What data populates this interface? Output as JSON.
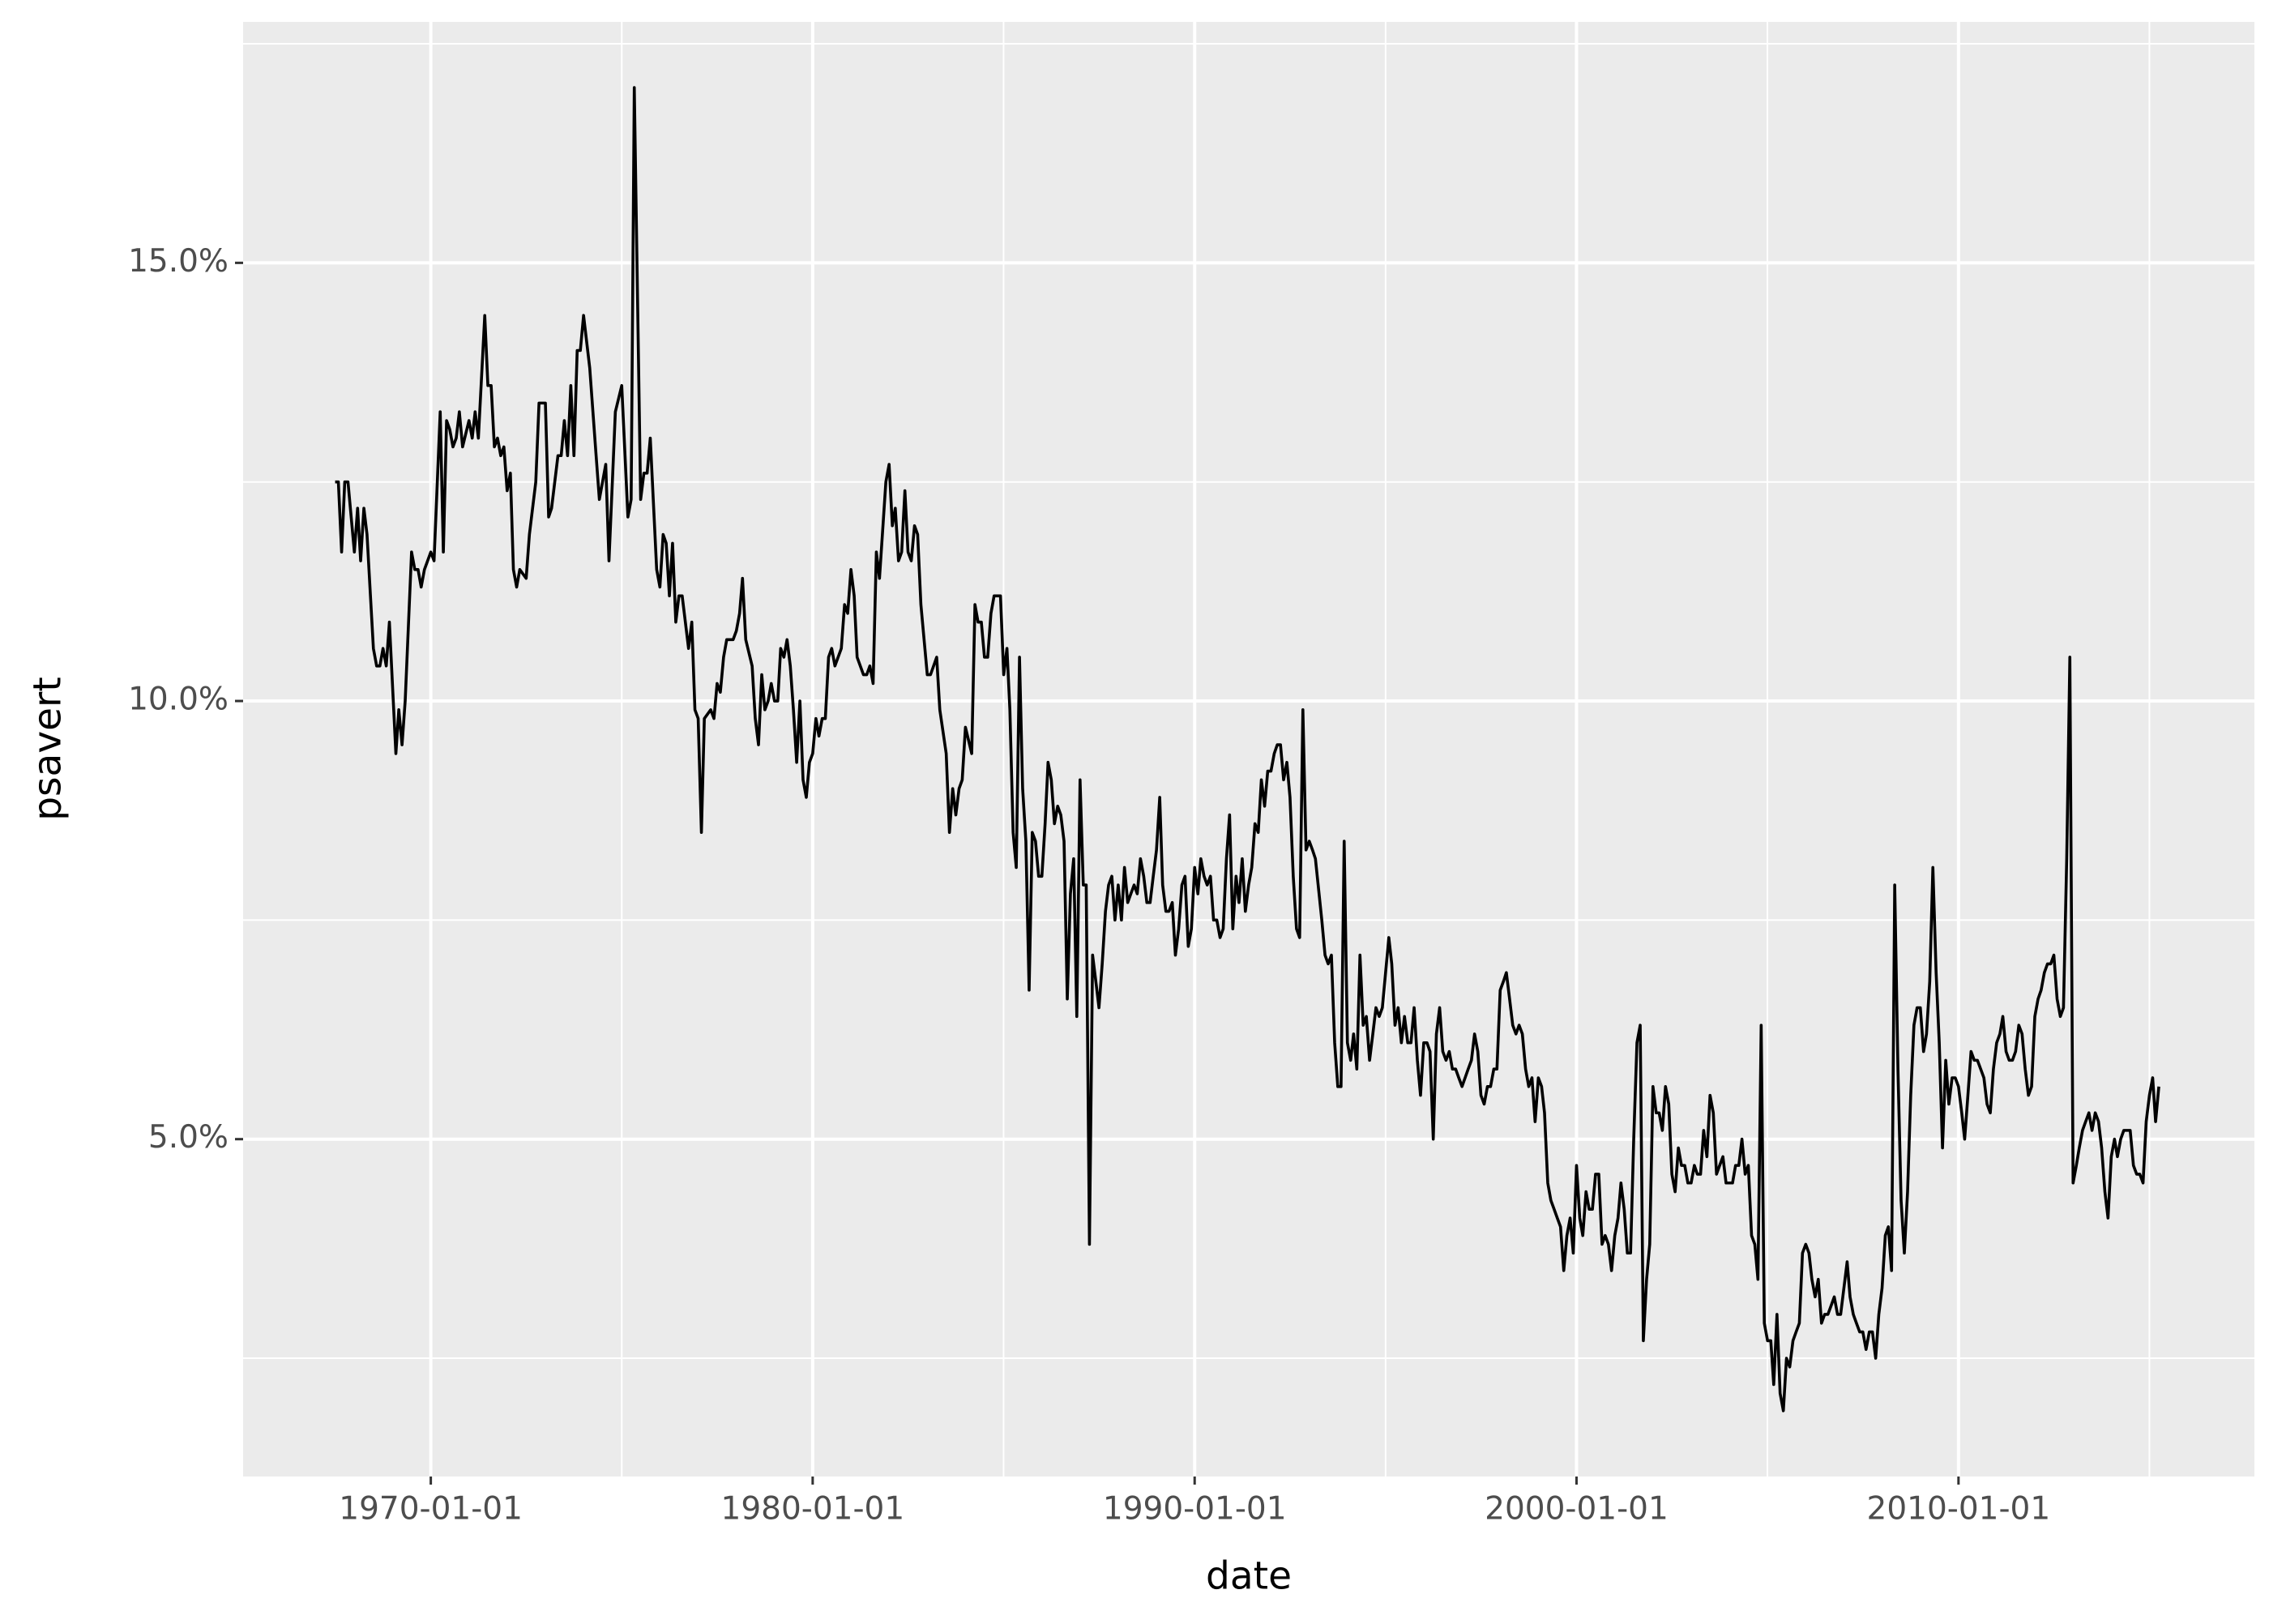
{
  "chart_data": {
    "type": "line",
    "xlabel": "date",
    "ylabel": "psavert",
    "color": "#000000",
    "grid": true,
    "xlim": [
      "1965-02-01",
      "2017-10-01"
    ],
    "xticks": [
      "1970-01-01",
      "1980-01-01",
      "1990-01-01",
      "2000-01-01",
      "2010-01-01"
    ],
    "ylim": [
      1.15,
      17.75
    ],
    "yticks": [
      {
        "value": 5,
        "label": "5.0%"
      },
      {
        "value": 10,
        "label": "10.0%"
      },
      {
        "value": 15,
        "label": "15.0%"
      }
    ],
    "x": [
      "1967-07-01",
      "1967-08-01",
      "1967-09-01",
      "1967-10-01",
      "1967-11-01",
      "1968-01-01",
      "1968-02-01",
      "1968-03-01",
      "1968-04-01",
      "1968-05-01",
      "1968-07-01",
      "1968-08-01",
      "1968-09-01",
      "1968-10-01",
      "1968-11-01",
      "1968-12-01",
      "1969-02-01",
      "1969-03-01",
      "1969-04-01",
      "1969-05-01",
      "1969-07-01",
      "1969-08-01",
      "1969-09-01",
      "1969-10-01",
      "1969-11-01",
      "1970-01-01",
      "1970-02-01",
      "1970-04-01",
      "1970-05-01",
      "1970-06-01",
      "1970-07-01",
      "1970-08-01",
      "1970-09-01",
      "1970-10-01",
      "1970-11-01",
      "1971-01-01",
      "1971-02-01",
      "1971-03-01",
      "1971-04-01",
      "1971-06-01",
      "1971-07-01",
      "1971-08-01",
      "1971-09-01",
      "1971-10-01",
      "1971-11-01",
      "1971-12-01",
      "1972-01-01",
      "1972-02-01",
      "1972-03-01",
      "1972-04-01",
      "1972-05-01",
      "1972-07-01",
      "1972-08-01",
      "1972-10-01",
      "1972-11-01",
      "1973-01-01",
      "1973-02-01",
      "1973-03-01",
      "1973-05-01",
      "1973-06-01",
      "1973-07-01",
      "1973-08-01",
      "1973-09-01",
      "1973-10-01",
      "1973-11-01",
      "1973-12-01",
      "1974-01-01",
      "1974-03-01",
      "1974-05-01",
      "1974-06-01",
      "1974-08-01",
      "1974-09-01",
      "1974-11-01",
      "1975-01-01",
      "1975-03-01",
      "1975-04-01",
      "1975-05-01",
      "1975-07-01",
      "1975-08-01",
      "1975-09-01",
      "1975-10-01",
      "1975-12-01",
      "1976-01-01",
      "1976-02-01",
      "1976-03-01",
      "1976-04-01",
      "1976-05-01",
      "1976-06-01",
      "1976-07-01",
      "1976-08-01",
      "1976-10-01",
      "1976-11-01",
      "1976-12-01",
      "1977-01-01",
      "1977-02-01",
      "1977-03-01",
      "1977-05-01",
      "1977-06-01",
      "1977-07-01",
      "1977-08-01",
      "1977-09-01",
      "1977-10-01",
      "1977-12-01",
      "1978-01-01",
      "1978-02-01",
      "1978-03-01",
      "1978-04-01",
      "1978-06-01",
      "1978-07-01",
      "1978-08-01",
      "1978-09-01",
      "1978-10-01",
      "1978-11-01",
      "1978-12-01",
      "1979-01-01",
      "1979-02-01",
      "1979-03-01",
      "1979-04-01",
      "1979-05-01",
      "1979-06-01",
      "1979-07-01",
      "1979-08-01",
      "1979-09-01",
      "1979-10-01",
      "1979-11-01",
      "1979-12-01",
      "1980-01-01",
      "1980-02-01",
      "1980-03-01",
      "1980-04-01",
      "1980-05-01",
      "1980-06-01",
      "1980-07-01",
      "1980-08-01",
      "1980-10-01",
      "1980-11-01",
      "1980-12-01",
      "1981-01-01",
      "1981-02-01",
      "1981-03-01",
      "1981-05-01",
      "1981-06-01",
      "1981-07-01",
      "1981-08-01",
      "1981-09-01",
      "1981-10-01",
      "1981-12-01",
      "1982-01-01",
      "1982-02-01",
      "1982-03-01",
      "1982-04-01",
      "1982-05-01",
      "1982-06-01",
      "1982-07-01",
      "1982-08-01",
      "1982-09-01",
      "1982-10-01",
      "1982-11-01",
      "1983-01-01",
      "1983-02-01",
      "1983-04-01",
      "1983-05-01",
      "1983-07-01",
      "1983-08-01",
      "1983-09-01",
      "1983-10-01",
      "1983-11-01",
      "1983-12-01",
      "1984-01-01",
      "1984-03-01",
      "1984-04-01",
      "1984-05-01",
      "1984-06-01",
      "1984-07-01",
      "1984-08-01",
      "1984-09-01",
      "1984-10-01",
      "1984-12-01",
      "1985-01-01",
      "1985-02-01",
      "1985-03-01",
      "1985-04-01",
      "1985-05-01",
      "1985-06-01",
      "1985-07-01",
      "1985-08-01",
      "1985-09-01",
      "1985-10-01",
      "1985-11-01",
      "1985-12-01",
      "1986-01-01",
      "1986-02-01",
      "1986-03-01",
      "1986-04-01",
      "1986-05-01",
      "1986-06-01",
      "1986-07-01",
      "1986-08-01",
      "1986-09-01",
      "1986-10-01",
      "1986-11-01",
      "1986-12-01",
      "1987-01-01",
      "1987-02-01",
      "1987-03-01",
      "1987-04-01",
      "1987-05-01",
      "1987-06-01",
      "1987-07-01",
      "1987-08-01",
      "1987-09-01",
      "1987-10-01",
      "1987-11-01",
      "1987-12-01",
      "1988-01-01",
      "1988-02-01",
      "1988-03-01",
      "1988-04-01",
      "1988-05-01",
      "1988-06-01",
      "1988-07-01",
      "1988-08-01",
      "1988-09-01",
      "1988-10-01",
      "1988-11-01",
      "1988-12-01",
      "1989-01-01",
      "1989-02-01",
      "1989-03-01",
      "1989-04-01",
      "1989-05-01",
      "1989-06-01",
      "1989-07-01",
      "1989-08-01",
      "1989-09-01",
      "1989-10-01",
      "1989-11-01",
      "1989-12-01",
      "1990-01-01",
      "1990-02-01",
      "1990-03-01",
      "1990-04-01",
      "1990-05-01",
      "1990-06-01",
      "1990-07-01",
      "1990-08-01",
      "1990-09-01",
      "1990-10-01",
      "1990-11-01",
      "1990-12-01",
      "1991-01-01",
      "1991-02-01",
      "1991-03-01",
      "1991-04-01",
      "1991-05-01",
      "1991-06-01",
      "1991-07-01",
      "1991-08-01",
      "1991-09-01",
      "1991-10-01",
      "1991-11-01",
      "1991-12-01",
      "1992-01-01",
      "1992-02-01",
      "1992-03-01",
      "1992-04-01",
      "1992-05-01",
      "1992-06-01",
      "1992-07-01",
      "1992-08-01",
      "1992-09-01",
      "1992-10-01",
      "1992-11-01",
      "1992-12-01",
      "1993-01-01",
      "1993-02-01",
      "1993-03-01",
      "1993-05-01",
      "1993-06-01",
      "1993-07-01",
      "1993-08-01",
      "1993-09-01",
      "1993-10-01",
      "1993-11-01",
      "1993-12-01",
      "1994-01-01",
      "1994-02-01",
      "1994-03-01",
      "1994-04-01",
      "1994-05-01",
      "1994-06-01",
      "1994-07-01",
      "1994-08-01",
      "1994-09-01",
      "1994-10-01",
      "1994-11-01",
      "1994-12-01",
      "1995-01-01",
      "1995-02-01",
      "1995-03-01",
      "1995-04-01",
      "1995-05-01",
      "1995-06-01",
      "1995-07-01",
      "1995-08-01",
      "1995-09-01",
      "1995-10-01",
      "1995-11-01",
      "1995-12-01",
      "1996-01-01",
      "1996-02-01",
      "1996-03-01",
      "1996-04-01",
      "1996-05-01",
      "1996-06-01",
      "1996-07-01",
      "1996-08-01",
      "1996-09-01",
      "1996-10-01",
      "1996-11-01",
      "1996-12-01",
      "1997-01-01",
      "1997-03-01",
      "1997-04-01",
      "1997-05-01",
      "1997-06-01",
      "1997-07-01",
      "1997-08-01",
      "1997-09-01",
      "1997-10-01",
      "1997-11-01",
      "1997-12-01",
      "1998-01-01",
      "1998-02-01",
      "1998-03-01",
      "1998-04-01",
      "1998-05-01",
      "1998-06-01",
      "1998-07-01",
      "1998-08-01",
      "1998-09-01",
      "1998-10-01",
      "1998-11-01",
      "1998-12-01",
      "1999-01-01",
      "1999-02-01",
      "1999-03-01",
      "1999-04-01",
      "1999-05-01",
      "1999-06-01",
      "1999-07-01",
      "1999-08-01",
      "1999-09-01",
      "1999-10-01",
      "1999-11-01",
      "1999-12-01",
      "2000-01-01",
      "2000-02-01",
      "2000-03-01",
      "2000-04-01",
      "2000-05-01",
      "2000-06-01",
      "2000-07-01",
      "2000-08-01",
      "2000-09-01",
      "2000-10-01",
      "2000-11-01",
      "2000-12-01",
      "2001-01-01",
      "2001-02-01",
      "2001-03-01",
      "2001-04-01",
      "2001-05-01",
      "2001-06-01",
      "2001-07-01",
      "2001-08-01",
      "2001-09-01",
      "2001-10-01",
      "2001-11-01",
      "2001-12-01",
      "2002-01-01",
      "2002-02-01",
      "2002-03-01",
      "2002-04-01",
      "2002-05-01",
      "2002-06-01",
      "2002-07-01",
      "2002-08-01",
      "2002-09-01",
      "2002-10-01",
      "2002-11-01",
      "2002-12-01",
      "2003-01-01",
      "2003-02-01",
      "2003-03-01",
      "2003-04-01",
      "2003-05-01",
      "2003-06-01",
      "2003-07-01",
      "2003-08-01",
      "2003-09-01",
      "2003-10-01",
      "2003-11-01",
      "2003-12-01",
      "2004-01-01",
      "2004-02-01",
      "2004-03-01",
      "2004-04-01",
      "2004-05-01",
      "2004-06-01",
      "2004-07-01",
      "2004-08-01",
      "2004-09-01",
      "2004-10-01",
      "2004-11-01",
      "2004-12-01",
      "2005-01-01",
      "2005-02-01",
      "2005-03-01",
      "2005-04-01",
      "2005-05-01",
      "2005-06-01",
      "2005-07-01",
      "2005-08-01",
      "2005-09-01",
      "2005-10-01",
      "2005-11-01",
      "2005-12-01",
      "2006-01-01",
      "2006-02-01",
      "2006-03-01",
      "2006-04-01",
      "2006-05-01",
      "2006-06-01",
      "2006-07-01",
      "2006-08-01",
      "2006-09-01",
      "2006-10-01",
      "2006-11-01",
      "2006-12-01",
      "2007-01-01",
      "2007-02-01",
      "2007-03-01",
      "2007-04-01",
      "2007-05-01",
      "2007-06-01",
      "2007-07-01",
      "2007-08-01",
      "2007-09-01",
      "2007-10-01",
      "2007-11-01",
      "2007-12-01",
      "2008-01-01",
      "2008-02-01",
      "2008-03-01",
      "2008-04-01",
      "2008-05-01",
      "2008-06-01",
      "2008-07-01",
      "2008-08-01",
      "2008-09-01",
      "2008-10-01",
      "2008-11-01",
      "2008-12-01",
      "2009-01-01",
      "2009-02-01",
      "2009-03-01",
      "2009-04-01",
      "2009-05-01",
      "2009-06-01",
      "2009-07-01",
      "2009-08-01",
      "2009-09-01",
      "2009-10-01",
      "2009-11-01",
      "2009-12-01",
      "2010-01-01",
      "2010-02-01",
      "2010-03-01",
      "2010-04-01",
      "2010-05-01",
      "2010-06-01",
      "2010-07-01",
      "2010-08-01",
      "2010-09-01",
      "2010-10-01",
      "2010-11-01",
      "2010-12-01",
      "2011-01-01",
      "2011-02-01",
      "2011-03-01",
      "2011-04-01",
      "2011-05-01",
      "2011-06-01",
      "2011-07-01",
      "2011-08-01",
      "2011-09-01",
      "2011-10-01",
      "2011-11-01",
      "2011-12-01",
      "2012-01-01",
      "2012-02-01",
      "2012-03-01",
      "2012-04-01",
      "2012-05-01",
      "2012-06-01",
      "2012-07-01",
      "2012-08-01",
      "2012-09-01",
      "2012-10-01",
      "2012-11-01",
      "2012-12-01",
      "2013-01-01",
      "2013-02-01",
      "2013-03-01",
      "2013-04-01",
      "2013-05-01",
      "2013-06-01",
      "2013-07-01",
      "2013-08-01",
      "2013-09-01",
      "2013-10-01",
      "2013-11-01",
      "2013-12-01",
      "2014-01-01",
      "2014-02-01",
      "2014-03-01",
      "2014-04-01",
      "2014-05-01",
      "2014-06-01",
      "2014-07-01",
      "2014-08-01",
      "2014-09-01",
      "2014-10-01",
      "2014-11-01",
      "2014-12-01",
      "2015-01-01",
      "2015-02-01",
      "2015-03-01",
      "2015-04-01"
    ],
    "values": [
      12.5,
      12.5,
      11.7,
      12.5,
      12.5,
      11.7,
      12.2,
      11.6,
      12.2,
      11.9,
      10.6,
      10.4,
      10.4,
      10.6,
      10.4,
      10.9,
      9.4,
      9.9,
      9.5,
      10.0,
      11.7,
      11.5,
      11.5,
      11.3,
      11.5,
      11.7,
      11.6,
      13.3,
      11.7,
      13.2,
      13.1,
      12.9,
      13.0,
      13.3,
      12.9,
      13.2,
      13.0,
      13.3,
      13.0,
      14.4,
      13.6,
      13.6,
      12.9,
      13.0,
      12.8,
      12.9,
      12.4,
      12.6,
      11.5,
      11.3,
      11.5,
      11.4,
      11.9,
      12.5,
      13.4,
      13.4,
      12.1,
      12.2,
      12.8,
      12.8,
      13.2,
      12.8,
      13.6,
      12.8,
      14.0,
      14.0,
      14.4,
      13.8,
      12.8,
      12.3,
      12.7,
      11.6,
      13.3,
      13.6,
      12.1,
      12.3,
      17.0,
      12.3,
      12.6,
      12.6,
      13.0,
      11.5,
      11.3,
      11.9,
      11.8,
      11.2,
      11.8,
      10.9,
      11.2,
      11.2,
      10.6,
      10.9,
      9.9,
      9.8,
      8.5,
      9.8,
      9.9,
      9.8,
      10.2,
      10.1,
      10.5,
      10.7,
      10.7,
      10.8,
      11.0,
      11.4,
      10.7,
      10.4,
      9.8,
      9.5,
      10.3,
      9.9,
      10.0,
      10.2,
      10.0,
      10.0,
      10.6,
      10.5,
      10.7,
      10.4,
      9.9,
      9.3,
      10.0,
      9.1,
      8.9,
      9.3,
      9.4,
      9.8,
      9.6,
      9.8,
      9.8,
      10.5,
      10.6,
      10.4,
      10.6,
      11.1,
      11.0,
      11.5,
      11.2,
      10.5,
      10.3,
      10.3,
      10.4,
      10.2,
      11.7,
      11.4,
      12.5,
      12.7,
      12.0,
      12.2,
      11.6,
      11.7,
      12.4,
      11.7,
      11.6,
      12.0,
      11.9,
      11.1,
      10.3,
      10.3,
      10.5,
      9.9,
      9.4,
      8.5,
      9.0,
      8.7,
      9.0,
      9.1,
      9.7,
      9.4,
      11.1,
      10.9,
      10.9,
      10.5,
      10.5,
      11.0,
      11.2,
      11.2,
      10.3,
      10.6,
      9.9,
      8.5,
      8.1,
      10.5,
      9.0,
      8.4,
      6.7,
      8.5,
      8.4,
      8.0,
      8.0,
      8.6,
      9.3,
      9.1,
      8.6,
      8.8,
      8.7,
      8.4,
      6.6,
      7.8,
      8.2,
      6.4,
      9.1,
      7.9,
      7.9,
      3.8,
      7.1,
      6.8,
      6.5,
      7.0,
      7.6,
      7.9,
      8.0,
      7.5,
      7.9,
      7.5,
      8.1,
      7.7,
      7.8,
      7.9,
      7.8,
      8.2,
      8.0,
      7.7,
      7.7,
      8.0,
      8.3,
      8.9,
      7.9,
      7.6,
      7.6,
      7.7,
      7.1,
      7.4,
      7.9,
      8.0,
      7.2,
      7.4,
      8.1,
      7.8,
      8.2,
      8.0,
      7.9,
      8.0,
      7.5,
      7.5,
      7.3,
      7.4,
      8.2,
      8.7,
      7.4,
      8.0,
      7.7,
      8.2,
      7.6,
      7.9,
      8.1,
      8.6,
      8.5,
      9.1,
      8.8,
      9.2,
      9.2,
      9.4,
      9.5,
      9.5,
      9.1,
      9.3,
      8.9,
      8.0,
      7.4,
      7.3,
      9.9,
      8.3,
      8.4,
      8.3,
      8.2,
      7.5,
      7.1,
      7.0,
      7.1,
      6.1,
      5.6,
      5.6,
      8.4,
      6.1,
      5.9,
      6.2,
      5.8,
      7.1,
      6.3,
      6.4,
      5.9,
      6.2,
      6.5,
      6.4,
      6.5,
      6.9,
      7.3,
      7.0,
      6.3,
      6.5,
      6.1,
      6.4,
      6.1,
      6.1,
      6.5,
      5.9,
      5.5,
      6.1,
      6.1,
      6.0,
      5.0,
      6.2,
      6.5,
      6.0,
      5.9,
      6.0,
      5.8,
      5.8,
      5.7,
      5.6,
      5.8,
      5.9,
      6.2,
      6.0,
      5.5,
      5.4,
      5.6,
      5.6,
      5.8,
      5.8,
      6.7,
      6.8,
      6.9,
      6.6,
      6.3,
      6.2,
      6.3,
      6.2,
      5.8,
      5.6,
      5.7,
      5.2,
      5.7,
      5.6,
      5.3,
      4.5,
      4.3,
      4.2,
      4.1,
      4.0,
      3.5,
      3.9,
      4.1,
      3.7,
      4.7,
      4.1,
      3.9,
      4.4,
      4.2,
      4.2,
      4.6,
      4.6,
      3.8,
      3.9,
      3.8,
      3.5,
      3.9,
      4.1,
      4.5,
      4.2,
      3.7,
      3.7,
      5.0,
      6.1,
      6.3,
      2.7,
      3.4,
      3.8,
      5.6,
      5.3,
      5.3,
      5.1,
      5.6,
      5.4,
      4.6,
      4.4,
      4.9,
      4.7,
      4.7,
      4.5,
      4.5,
      4.7,
      4.6,
      4.6,
      5.1,
      4.8,
      5.5,
      5.3,
      4.6,
      4.7,
      4.8,
      4.5,
      4.5,
      4.5,
      4.7,
      4.7,
      5.0,
      4.6,
      4.7,
      3.9,
      3.8,
      3.4,
      6.3,
      2.9,
      2.7,
      2.7,
      2.2,
      3.0,
      2.1,
      1.9,
      2.5,
      2.4,
      2.7,
      2.8,
      2.9,
      3.7,
      3.8,
      3.7,
      3.4,
      3.2,
      3.4,
      2.9,
      3.0,
      3.0,
      3.1,
      3.2,
      3.0,
      3.0,
      3.3,
      3.6,
      3.2,
      3.0,
      2.9,
      2.8,
      2.8,
      2.6,
      2.8,
      2.8,
      2.5,
      3.0,
      3.3,
      3.9,
      4.0,
      3.5,
      7.9,
      5.8,
      4.3,
      3.7,
      4.4,
      5.5,
      6.3,
      6.5,
      6.5,
      6.0,
      6.2,
      6.8,
      8.1,
      6.9,
      6.1,
      4.9,
      5.9,
      5.4,
      5.7,
      5.7,
      5.6,
      5.3,
      5.0,
      5.5,
      6.0,
      5.9,
      5.9,
      5.8,
      5.7,
      5.4,
      5.3,
      5.8,
      6.1,
      6.2,
      6.4,
      6.0,
      5.9,
      5.9,
      6.0,
      6.3,
      6.2,
      5.8,
      5.5,
      5.6,
      6.4,
      6.6,
      6.7,
      6.9,
      7.0,
      7.0,
      7.1,
      6.6,
      6.4,
      6.5,
      8.2,
      10.5,
      4.5,
      4.7,
      4.9,
      5.1,
      5.2,
      5.3,
      5.1,
      5.3,
      5.2,
      4.9,
      4.4,
      4.1,
      4.8,
      5.0,
      4.8,
      5.0,
      5.1,
      5.1,
      5.1,
      4.7,
      4.6,
      4.6,
      4.5,
      5.2,
      5.5,
      5.7,
      5.2,
      5.6
    ]
  }
}
